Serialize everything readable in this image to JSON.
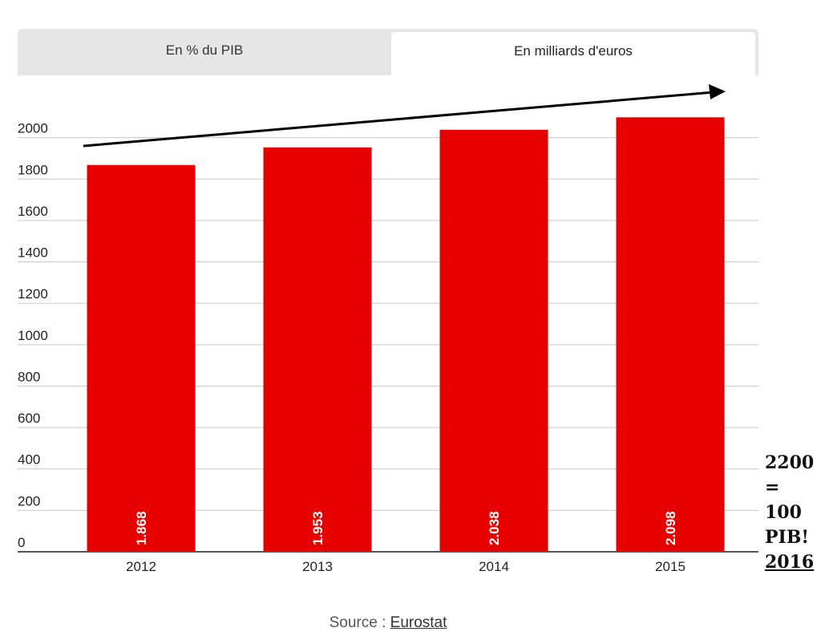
{
  "tabs": [
    {
      "label": "En % du PIB",
      "active": false
    },
    {
      "label": "En milliards d'euros",
      "active": true
    }
  ],
  "chart_data": {
    "type": "bar",
    "categories": [
      "2012",
      "2013",
      "2014",
      "2015"
    ],
    "values": [
      1868,
      1953,
      2038,
      2098
    ],
    "data_labels": [
      "1.868",
      "1.953",
      "2.038",
      "2.098"
    ],
    "yticks": [
      "0",
      "200",
      "400",
      "600",
      "800",
      "1000",
      "1200",
      "1400",
      "1600",
      "1800",
      "2000"
    ],
    "ylim": [
      0,
      2200
    ],
    "grid": true,
    "bar_color": "#e60000",
    "trend_arrow": true,
    "title": "",
    "xlabel": "",
    "ylabel": ""
  },
  "annotation": {
    "lines": [
      "2200",
      "=",
      "100",
      "PIB!",
      "2016"
    ]
  },
  "source": {
    "prefix": "Source : ",
    "link": "Eurostat"
  }
}
